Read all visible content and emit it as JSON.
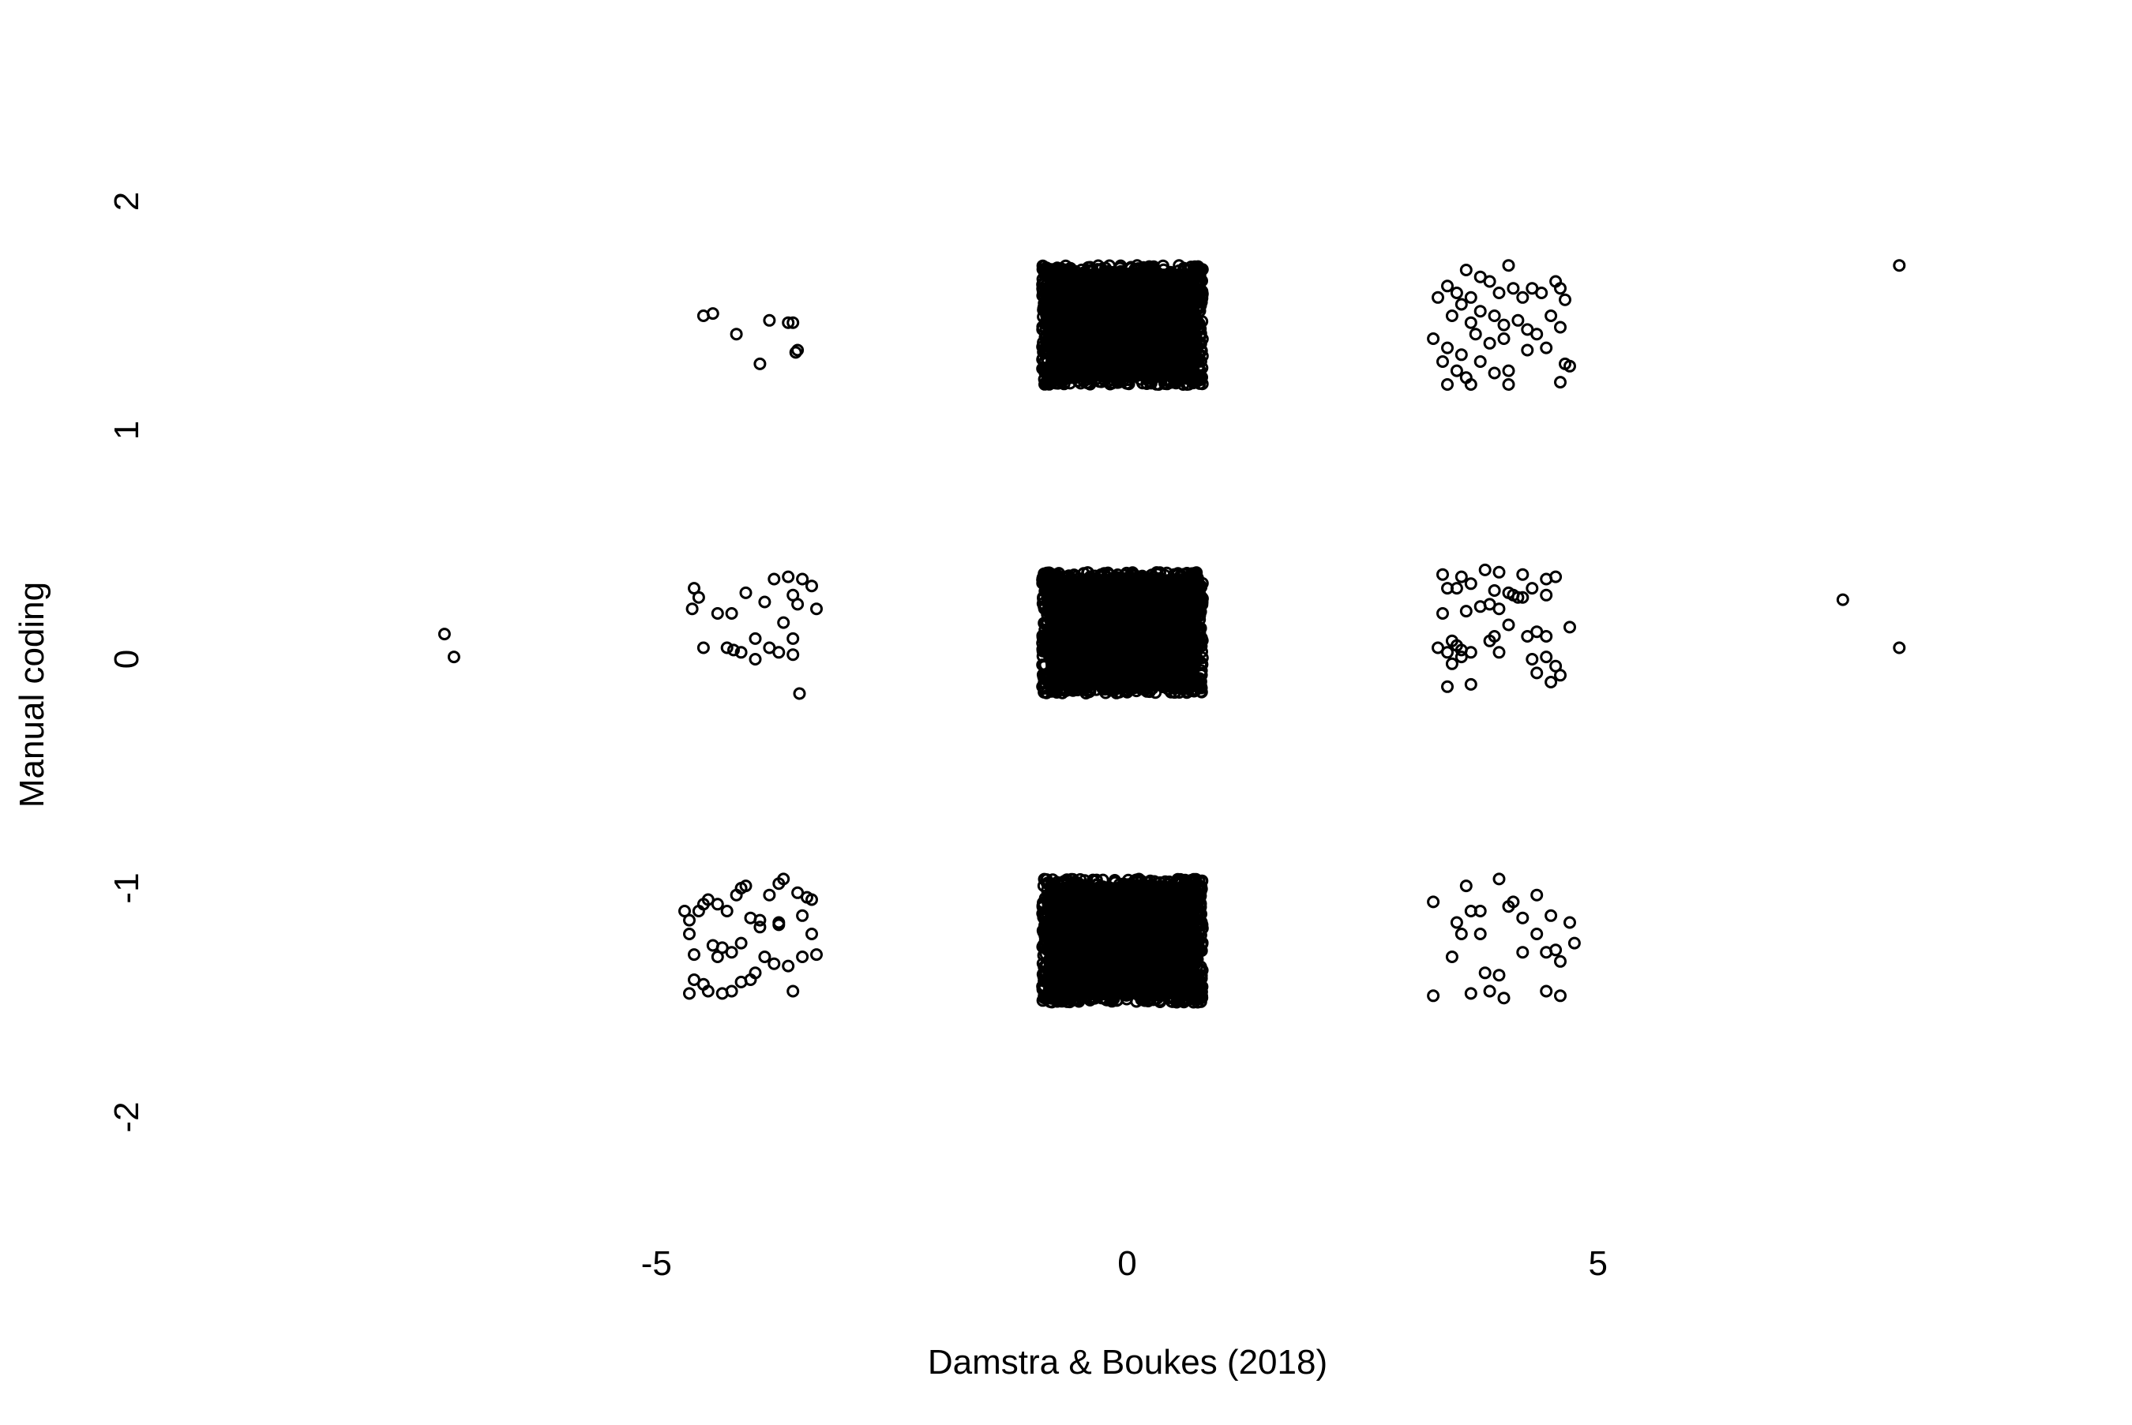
{
  "chart_data": {
    "type": "scatter",
    "title": "",
    "xlabel": "Damstra & Boukes (2018)",
    "ylabel": "Manual coding",
    "xlim": [
      -10,
      10
    ],
    "ylim": [
      -2.5,
      2.5
    ],
    "x_ticks": [
      -5,
      0,
      5
    ],
    "x_tick_labels": [
      "-5",
      "0",
      "5"
    ],
    "y_ticks": [
      -2,
      -1,
      0,
      1,
      2
    ],
    "y_tick_labels": [
      "-2",
      "-1",
      "0",
      "1",
      "2"
    ],
    "grid": false,
    "legend": "none",
    "marker": "open-circle",
    "colors": {
      "marker": "#000000",
      "background": "#ffffff"
    },
    "series": [
      {
        "points": [
          [
            -4.5,
            1.5
          ],
          [
            -4.4,
            1.51
          ],
          [
            -4.15,
            1.42
          ],
          [
            -3.8,
            1.48
          ],
          [
            -3.6,
            1.47
          ],
          [
            -3.55,
            1.47
          ],
          [
            -3.5,
            1.35
          ],
          [
            -3.52,
            1.34
          ],
          [
            -3.9,
            1.29
          ],
          [
            -7.25,
            0.11
          ],
          [
            -7.15,
            0.01
          ],
          [
            -4.6,
            0.31
          ],
          [
            -4.55,
            0.27
          ],
          [
            -4.62,
            0.22
          ],
          [
            -4.35,
            0.2
          ],
          [
            -4.2,
            0.2
          ],
          [
            -4.05,
            0.29
          ],
          [
            -3.85,
            0.25
          ],
          [
            -3.75,
            0.35
          ],
          [
            -3.6,
            0.36
          ],
          [
            -3.45,
            0.35
          ],
          [
            -3.35,
            0.32
          ],
          [
            -3.3,
            0.22
          ],
          [
            -3.55,
            0.28
          ],
          [
            -3.5,
            0.24
          ],
          [
            -4.5,
            0.05
          ],
          [
            -4.25,
            0.05
          ],
          [
            -4.18,
            0.04
          ],
          [
            -4.1,
            0.03
          ],
          [
            -3.95,
            0.09
          ],
          [
            -3.8,
            0.05
          ],
          [
            -3.65,
            0.16
          ],
          [
            -3.55,
            0.09
          ],
          [
            -3.7,
            0.03
          ],
          [
            -3.55,
            0.02
          ],
          [
            -3.48,
            -0.15
          ],
          [
            -3.95,
            0.0
          ],
          [
            -4.7,
            -1.1
          ],
          [
            -4.65,
            -1.14
          ],
          [
            -4.55,
            -1.1
          ],
          [
            -4.5,
            -1.07
          ],
          [
            -4.45,
            -1.05
          ],
          [
            -4.35,
            -1.07
          ],
          [
            -4.25,
            -1.1
          ],
          [
            -4.15,
            -1.03
          ],
          [
            -4.1,
            -1.0
          ],
          [
            -4.05,
            -0.99
          ],
          [
            -3.9,
            -1.14
          ],
          [
            -3.8,
            -1.03
          ],
          [
            -3.7,
            -0.98
          ],
          [
            -3.65,
            -0.96
          ],
          [
            -3.5,
            -1.02
          ],
          [
            -3.4,
            -1.04
          ],
          [
            -3.35,
            -1.05
          ],
          [
            -3.45,
            -1.12
          ],
          [
            -3.35,
            -1.2
          ],
          [
            -3.3,
            -1.29
          ],
          [
            -3.45,
            -1.3
          ],
          [
            -3.6,
            -1.34
          ],
          [
            -3.75,
            -1.33
          ],
          [
            -3.85,
            -1.3
          ],
          [
            -3.95,
            -1.37
          ],
          [
            -4.0,
            -1.4
          ],
          [
            -4.1,
            -1.41
          ],
          [
            -4.2,
            -1.45
          ],
          [
            -4.3,
            -1.46
          ],
          [
            -4.45,
            -1.45
          ],
          [
            -4.5,
            -1.42
          ],
          [
            -4.6,
            -1.4
          ],
          [
            -4.65,
            -1.46
          ],
          [
            -4.6,
            -1.29
          ],
          [
            -4.65,
            -1.2
          ],
          [
            -4.4,
            -1.25
          ],
          [
            -4.3,
            -1.26
          ],
          [
            -4.2,
            -1.28
          ],
          [
            -4.1,
            -1.24
          ],
          [
            -3.9,
            -1.17
          ],
          [
            -3.7,
            -1.15
          ],
          [
            -3.55,
            -1.45
          ],
          [
            -3.7,
            -1.16
          ],
          [
            -4.0,
            -1.13
          ],
          [
            -4.35,
            -1.3
          ],
          [
            3.3,
            1.58
          ],
          [
            3.4,
            1.63
          ],
          [
            3.5,
            1.6
          ],
          [
            3.6,
            1.7
          ],
          [
            3.65,
            1.58
          ],
          [
            3.75,
            1.67
          ],
          [
            3.85,
            1.65
          ],
          [
            3.95,
            1.6
          ],
          [
            4.05,
            1.72
          ],
          [
            4.1,
            1.62
          ],
          [
            4.2,
            1.58
          ],
          [
            4.3,
            1.62
          ],
          [
            4.4,
            1.6
          ],
          [
            4.55,
            1.65
          ],
          [
            4.6,
            1.62
          ],
          [
            4.65,
            1.57
          ],
          [
            3.45,
            1.5
          ],
          [
            3.55,
            1.55
          ],
          [
            3.65,
            1.47
          ],
          [
            3.75,
            1.52
          ],
          [
            3.9,
            1.5
          ],
          [
            4.0,
            1.46
          ],
          [
            4.15,
            1.48
          ],
          [
            4.25,
            1.44
          ],
          [
            4.35,
            1.42
          ],
          [
            4.5,
            1.5
          ],
          [
            4.6,
            1.45
          ],
          [
            3.25,
            1.4
          ],
          [
            3.4,
            1.36
          ],
          [
            3.55,
            1.33
          ],
          [
            3.7,
            1.42
          ],
          [
            3.85,
            1.38
          ],
          [
            4.0,
            1.4
          ],
          [
            4.25,
            1.35
          ],
          [
            4.45,
            1.36
          ],
          [
            3.35,
            1.3
          ],
          [
            3.5,
            1.26
          ],
          [
            3.6,
            1.23
          ],
          [
            3.75,
            1.3
          ],
          [
            3.9,
            1.25
          ],
          [
            4.05,
            1.26
          ],
          [
            4.65,
            1.29
          ],
          [
            4.7,
            1.28
          ],
          [
            3.4,
            1.2
          ],
          [
            3.65,
            1.2
          ],
          [
            4.05,
            1.2
          ],
          [
            4.6,
            1.21
          ],
          [
            3.35,
            0.37
          ],
          [
            3.55,
            0.36
          ],
          [
            3.8,
            0.39
          ],
          [
            3.95,
            0.38
          ],
          [
            4.2,
            0.37
          ],
          [
            4.45,
            0.35
          ],
          [
            4.55,
            0.36
          ],
          [
            3.4,
            0.31
          ],
          [
            3.5,
            0.31
          ],
          [
            3.65,
            0.33
          ],
          [
            3.9,
            0.3
          ],
          [
            4.05,
            0.29
          ],
          [
            4.15,
            0.27
          ],
          [
            4.3,
            0.31
          ],
          [
            4.45,
            0.28
          ],
          [
            3.35,
            0.2
          ],
          [
            3.6,
            0.21
          ],
          [
            3.75,
            0.23
          ],
          [
            3.85,
            0.24
          ],
          [
            3.95,
            0.22
          ],
          [
            4.1,
            0.28
          ],
          [
            4.2,
            0.27
          ],
          [
            3.45,
            0.08
          ],
          [
            3.5,
            0.06
          ],
          [
            3.3,
            0.05
          ],
          [
            3.4,
            0.03
          ],
          [
            3.55,
            0.04
          ],
          [
            3.65,
            0.03
          ],
          [
            3.9,
            0.1
          ],
          [
            4.05,
            0.15
          ],
          [
            4.25,
            0.1
          ],
          [
            4.35,
            0.12
          ],
          [
            4.45,
            0.1
          ],
          [
            4.7,
            0.14
          ],
          [
            3.85,
            0.08
          ],
          [
            4.3,
            0.0
          ],
          [
            4.55,
            -0.03
          ],
          [
            4.6,
            -0.07
          ],
          [
            4.5,
            -0.1
          ],
          [
            4.35,
            -0.06
          ],
          [
            3.4,
            -0.12
          ],
          [
            3.65,
            -0.11
          ],
          [
            3.55,
            0.01
          ],
          [
            3.45,
            -0.02
          ],
          [
            3.95,
            0.03
          ],
          [
            4.45,
            0.01
          ],
          [
            3.25,
            -1.06
          ],
          [
            3.6,
            -0.99
          ],
          [
            3.65,
            -1.1
          ],
          [
            3.75,
            -1.1
          ],
          [
            3.95,
            -0.96
          ],
          [
            4.05,
            -1.08
          ],
          [
            4.1,
            -1.06
          ],
          [
            4.35,
            -1.03
          ],
          [
            4.5,
            -1.12
          ],
          [
            4.7,
            -1.15
          ],
          [
            3.5,
            -1.15
          ],
          [
            3.55,
            -1.2
          ],
          [
            3.75,
            -1.2
          ],
          [
            4.2,
            -1.13
          ],
          [
            4.35,
            -1.2
          ],
          [
            4.55,
            -1.27
          ],
          [
            4.75,
            -1.24
          ],
          [
            3.45,
            -1.3
          ],
          [
            4.2,
            -1.28
          ],
          [
            4.45,
            -1.28
          ],
          [
            4.6,
            -1.32
          ],
          [
            3.8,
            -1.37
          ],
          [
            3.95,
            -1.38
          ],
          [
            3.25,
            -1.47
          ],
          [
            3.65,
            -1.46
          ],
          [
            3.85,
            -1.45
          ],
          [
            4.0,
            -1.48
          ],
          [
            4.45,
            -1.45
          ],
          [
            4.6,
            -1.47
          ],
          [
            7.6,
            0.26
          ],
          [
            8.2,
            0.05
          ],
          [
            8.2,
            1.72
          ]
        ],
        "dense_clusters": [
          {
            "x_range": [
              -0.9,
              0.8
            ],
            "y_range": [
              1.2,
              1.72
            ]
          },
          {
            "x_range": [
              -0.9,
              0.8
            ],
            "y_range": [
              -0.15,
              0.38
            ]
          },
          {
            "x_range": [
              -0.9,
              0.8
            ],
            "y_range": [
              -1.5,
              -0.96
            ]
          }
        ]
      }
    ]
  }
}
